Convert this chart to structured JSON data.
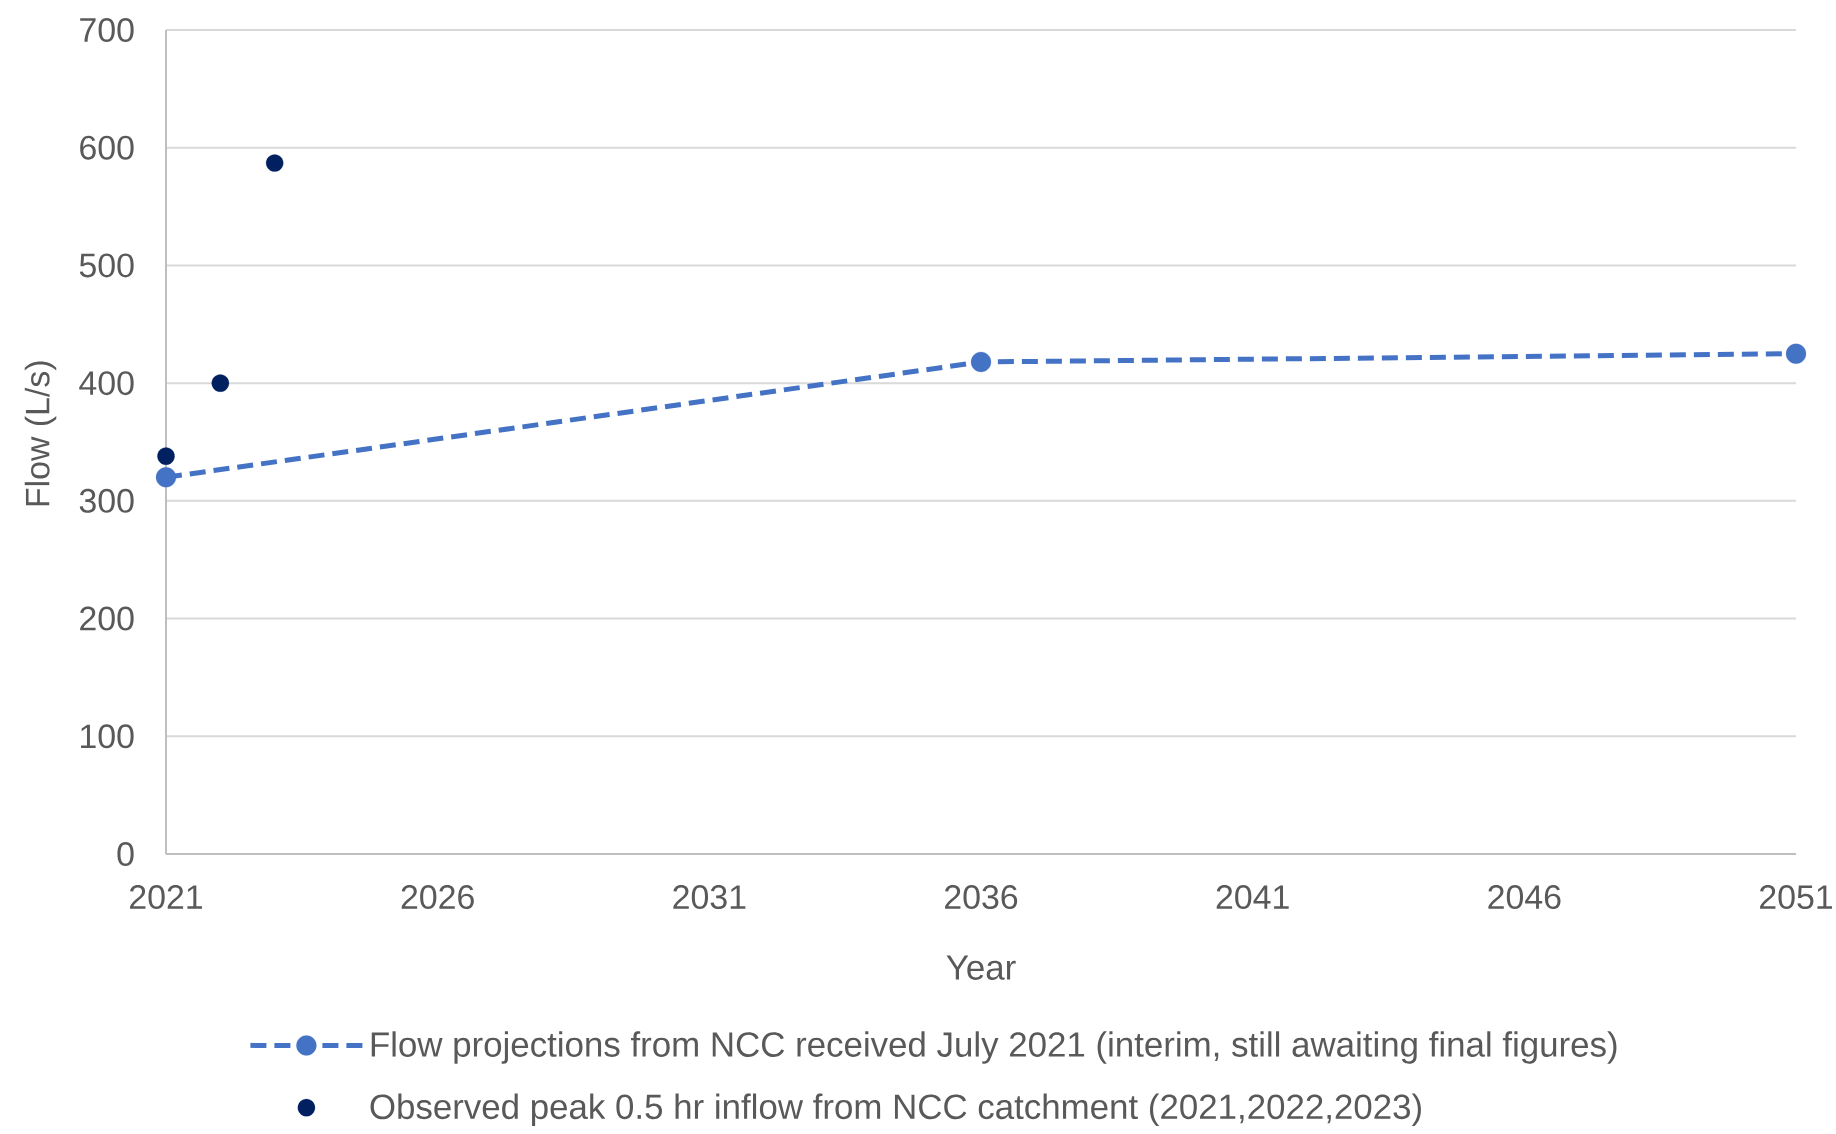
{
  "chart_data": {
    "type": "line",
    "xlabel": "Year",
    "ylabel": "Flow (L/s)",
    "xlim": [
      2021,
      2051
    ],
    "ylim": [
      0,
      700
    ],
    "xticks": [
      2021,
      2026,
      2031,
      2036,
      2041,
      2046,
      2051
    ],
    "yticks": [
      0,
      100,
      200,
      300,
      400,
      500,
      600,
      700
    ],
    "grid": "y",
    "legend": "bottom",
    "series": [
      {
        "name": "Flow projections from NCC received July 2021 (interim, still awaiting final figures)",
        "color": "#4472c4",
        "marker": "circle",
        "line_style": "dashed",
        "x": [
          2021,
          2036,
          2051
        ],
        "values": [
          320,
          418,
          425
        ]
      },
      {
        "name": "Observed peak 0.5 hr inflow from NCC catchment (2021,2022,2023)",
        "type": "scatter",
        "color": "#002060",
        "marker": "circle",
        "x": [
          2021,
          2022,
          2023
        ],
        "values": [
          338,
          400,
          587
        ]
      }
    ]
  }
}
